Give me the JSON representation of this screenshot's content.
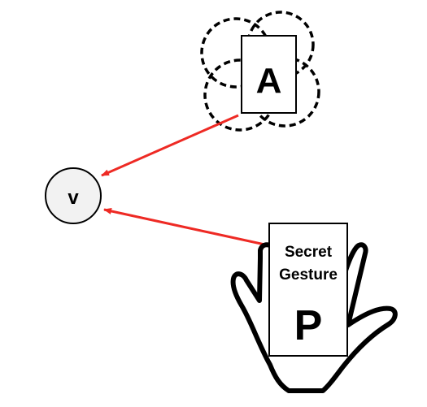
{
  "diagram": {
    "card_a": {
      "label": "A"
    },
    "node_v": {
      "label": "v"
    },
    "card_p": {
      "caption_line1": "Secret",
      "caption_line2": "Gesture",
      "label": "P"
    }
  },
  "colors": {
    "arrow": "#ee2a24",
    "node_fill": "#f2f2f2",
    "stroke": "#000000",
    "card_fill": "#ffffff"
  }
}
